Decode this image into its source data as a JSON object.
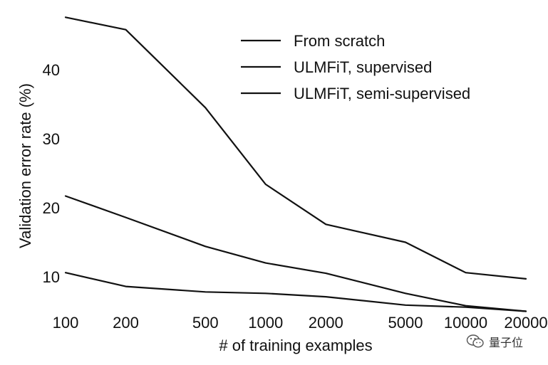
{
  "chart_data": {
    "type": "line",
    "title": "",
    "xlabel": "# of training examples",
    "ylabel": "Validation error rate (%)",
    "x_scale": "log",
    "x": [
      100,
      200,
      500,
      1000,
      2000,
      5000,
      10000,
      20000
    ],
    "x_tick_labels": [
      "100",
      "200",
      "500",
      "1000",
      "2000",
      "5000",
      "10000",
      "20000"
    ],
    "y_ticks": [
      10,
      20,
      30,
      40
    ],
    "ylim": [
      5,
      48
    ],
    "series": [
      {
        "name": "From scratch",
        "values": [
          47.6,
          45.8,
          34.5,
          23.4,
          17.6,
          15.0,
          10.6,
          9.7
        ]
      },
      {
        "name": "ULMFiT, supervised",
        "values": [
          21.7,
          18.6,
          14.4,
          12.0,
          10.5,
          7.6,
          5.8,
          5.0
        ]
      },
      {
        "name": "ULMFiT, semi-supervised",
        "values": [
          10.6,
          8.6,
          7.8,
          7.6,
          7.1,
          5.9,
          5.6,
          5.0
        ]
      }
    ],
    "legend_position": "top-right",
    "grid": false,
    "line_color": "#111111"
  },
  "watermark": {
    "text": "量子位"
  }
}
